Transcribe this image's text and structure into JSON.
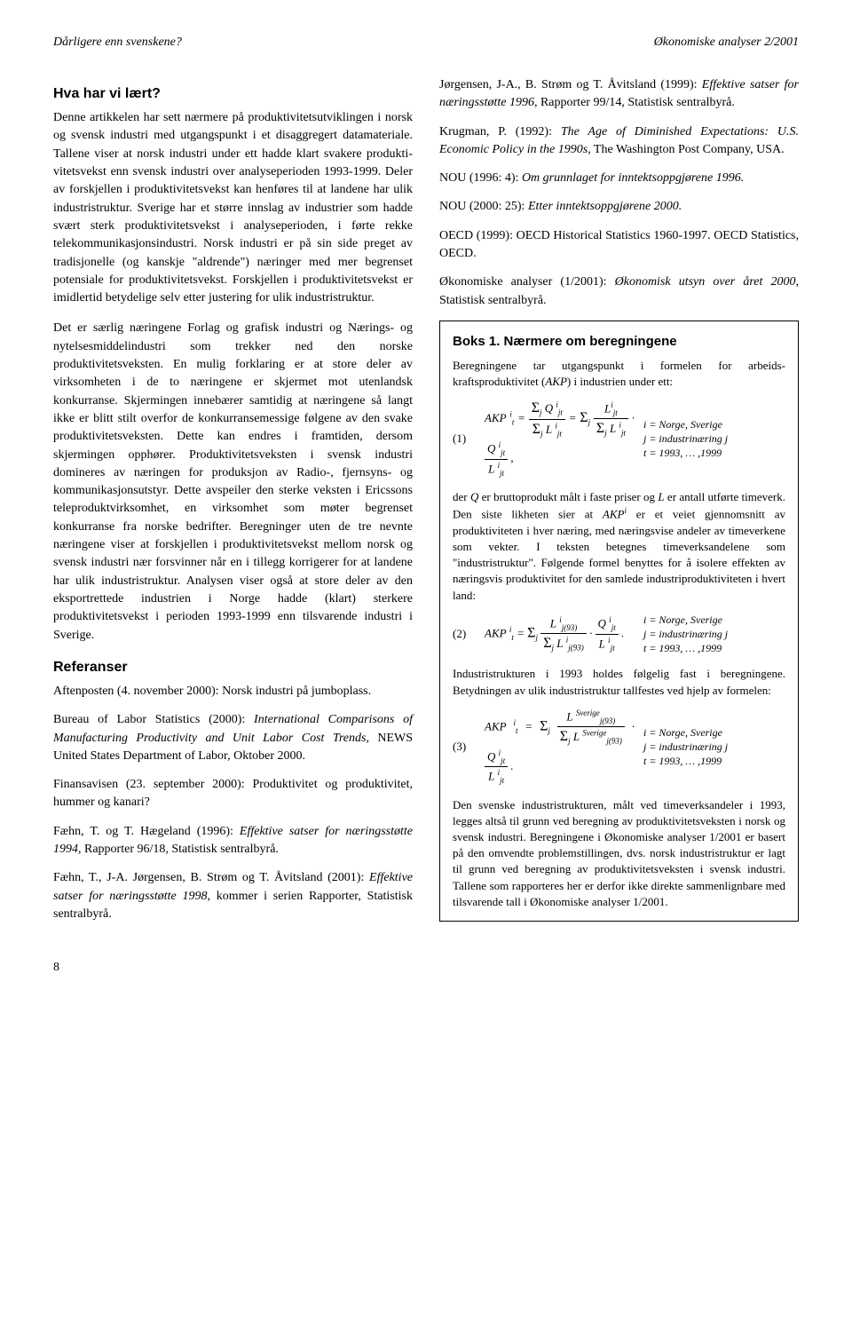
{
  "header": {
    "left": "Dårligere enn svenskene?",
    "right": "Økonomiske analyser 2/2001"
  },
  "left_col": {
    "heading1": "Hva har vi lært?",
    "para1": "Denne artikkelen har sett nærmere på produktivitets­utviklingen i norsk og svensk industri med utgangs­punkt i et disaggregert datamateriale. Tallene viser at norsk industri under ett hadde klart svakere produkti­vitetsvekst enn svensk industri over analyseperioden 1993-1999. Deler av forskjellen i produktivitetsvekst kan henføres til at landene har ulik industristruktur. Sverige har et større innslag av industrier som hadde svært sterk produktivitetsvekst i analyseperioden, i førte rekke telekommunikasjonsindustri. Norsk indus­tri er på sin side preget av tradisjonelle (og kanskje \"aldrende\") næringer med mer begrenset potensiale for produktivitetsvekst. Forskjellen i produktivitets­vekst er imidlertid betydelige selv etter justering for ulik industristruktur.",
    "para2": "Det er særlig næringene Forlag og grafisk industri og Nærings- og nytelsesmiddelindustri som trekker ned den norske produktivitetsveksten. En mulig forklaring er at store deler av virksomheten i de to næringene er skjermet mot utenlandsk konkurranse. Skjermingen innebærer samtidig at næringene så langt ikke er blitt stilt overfor de konkurransemessige følgene av den svake produktivitetsveksten. Dette kan endres i fram­tiden, dersom skjermingen opphører. Produktivitets­veksten i svensk industri domineres av næringen for produksjon av Radio-, fjernsyns- og kommunikasjons­utstyr. Dette avspeiler den sterke veksten i Ericssons teleproduktvirksomhet, en virksomhet som møter be­grenset konkurranse fra norske bedrifter. Beregninger uten de tre nevnte næringene viser at forskjellen i pro­duktivitetsvekst mellom norsk og svensk industri nær forsvinner når en i tillegg korrigerer for at landene har ulik industristruktur. Analysen viser også at store deler av den eksportrettede industrien i Norge hadde (klart) sterkere produktivitetsvekst i perioden 1993-1999 enn tilsvarende industri i Sverige.",
    "heading2": "Referanser",
    "refs": {
      "r1a": "Aftenposten (4. november 2000): Norsk industri på jumboplass.",
      "r2a": "Bureau of Labor Statistics (2000): ",
      "r2b": "International Com­parisons of Manufacturing Productivity and Unit Labor Cost Trends",
      "r2c": ", NEWS United States Department of Labor, Oktober 2000.",
      "r3a": "Finansavisen (23. september 2000): Produktivitet og produktivitet, hummer og kanari?",
      "r4a": "Fæhn, T. og T. Hægeland (1996): ",
      "r4b": "Effektive satser for næringsstøtte 1994",
      "r4c": ", Rapporter 96/18, Statistisk sen­tralbyrå.",
      "r5a": "Fæhn, T., J-A. Jørgensen, B. Strøm og T. Åvitsland (2001): ",
      "r5b": "Effektive satser for næringsstøtte 1998",
      "r5c": ", kom­mer i serien Rapporter, Statistisk sentralbyrå."
    }
  },
  "right_col": {
    "refs": {
      "r6a": "Jørgensen, J-A., B. Strøm og T. Åvitsland (1999): ",
      "r6b": "Effektive satser for næringsstøtte 1996",
      "r6c": ", Rapporter 99/14, Statistisk sentralbyrå.",
      "r7a": "Krugman, P. (1992): ",
      "r7b": "The Age of Diminished Expecta­tions: U.S. Economic Policy in the 1990s",
      "r7c": ", The Washing­ton Post Company, USA.",
      "r8a": "NOU (1996: 4): ",
      "r8b": "Om grunnlaget for inntektsoppgjørene 1996.",
      "r9a": "NOU (2000: 25): ",
      "r9b": "Etter inntektsoppgjørene 2000.",
      "r10a": "OECD (1999): OECD Historical Statistics 1960-1997. OECD Statistics, OECD.",
      "r11a": "Økonomiske analyser (1/2001): ",
      "r11b": "Økonomisk utsyn over året 2000",
      "r11c": ", Statistisk sentralbyrå."
    },
    "box": {
      "heading": "Boks 1. Nærmere om beregningene",
      "p1a": "Beregningene tar utgangspunkt i formelen for arbeids­kraftsproduktivitet (",
      "p1b": "AKP",
      "p1c": ") i industrien under ett:",
      "f1_num": "(1)",
      "f1_cond1": "i = Norge, Sverige",
      "f1_cond2": "j = industrinæring j",
      "f1_cond3": "t = 1993, … ,1999",
      "p2a": "der ",
      "p2b": "Q",
      "p2c": " er bruttoprodukt målt i faste priser og ",
      "p2d": "L",
      "p2e": " er antall ut­førte timeverk. Den siste likheten sier at ",
      "p2f": "AKP",
      "p2f_sup": "i",
      "p2g": " er et veiet gjennomsnitt av produktiviteten i hver næring, med næringsvise andeler av timeverkene som vekter. I teksten betegnes timeverksandelene som \"industristruktur\". Følgende formel benyttes for å isolere effekten av nærings­vis produktivitet for den samlede industriproduktiviteten i hvert land:",
      "f2_num": "(2)",
      "f2_cond1": "i = Norge, Sverige",
      "f2_cond2": "j = industrinæring j",
      "f2_cond3": "t = 1993, … ,1999",
      "p3": "Industristrukturen i 1993 holdes følgelig fast i beregnin­gene. Betydningen av ulik industristruktur tallfestes ved hjelp av formelen:",
      "f3_num": "(3)",
      "f3_cond1": "i = Norge, Sverige",
      "f3_cond2": "j = industrinæring j",
      "f3_cond3": "t = 1993, … ,1999",
      "p4": "Den svenske industristrukturen, målt ved timeverksandeler i 1993, legges altså til grunn ved beregning av produktivi­tetsveksten i norsk og svensk industri. Beregningene i Øko­nomiske analyser 1/2001 er basert på den omvendte pro­blemstillingen, dvs. norsk industristruktur er lagt til grunn ved beregning av produktivitetsveksten i svensk industri. Tallene som rapporteres her er derfor ikke direkte sammen­lignbare med tilsvarende tall i Økonomiske analyser 1/2001."
    }
  },
  "page_number": "8"
}
